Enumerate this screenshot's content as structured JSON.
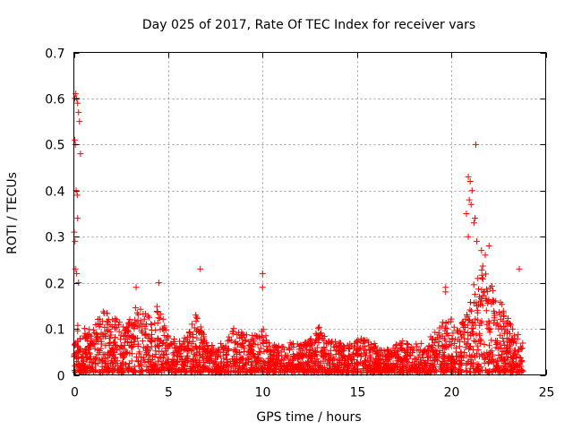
{
  "chart_data": {
    "type": "scatter",
    "title": "Day 025 of 2017, Rate Of TEC Index for receiver vars",
    "xlabel": "GPS time / hours",
    "ylabel": "ROTI / TECUs",
    "xlim": [
      0,
      25
    ],
    "ylim": [
      0,
      0.7
    ],
    "xticks": [
      0,
      5,
      10,
      15,
      20,
      25
    ],
    "yticks": [
      0,
      0.1,
      0.2,
      0.3,
      0.4,
      0.5,
      0.6,
      0.7
    ],
    "xtick_labels": [
      "0",
      "5",
      "10",
      "15",
      "20",
      "25"
    ],
    "ytick_labels": [
      "0",
      "0.1",
      "0.2",
      "0.3",
      "0.4",
      "0.5",
      "0.6",
      "0.7"
    ],
    "grid": true,
    "marker": "+",
    "color": "#ff0000",
    "series": [
      {
        "name": "ROTI",
        "envelope": [
          {
            "x": 0.0,
            "y": 0.12
          },
          {
            "x": 0.5,
            "y": 0.1
          },
          {
            "x": 1.0,
            "y": 0.09
          },
          {
            "x": 1.5,
            "y": 0.14
          },
          {
            "x": 2.0,
            "y": 0.13
          },
          {
            "x": 2.5,
            "y": 0.11
          },
          {
            "x": 3.0,
            "y": 0.12
          },
          {
            "x": 3.5,
            "y": 0.16
          },
          {
            "x": 4.0,
            "y": 0.12
          },
          {
            "x": 4.5,
            "y": 0.15
          },
          {
            "x": 5.0,
            "y": 0.08
          },
          {
            "x": 5.5,
            "y": 0.07
          },
          {
            "x": 6.0,
            "y": 0.08
          },
          {
            "x": 6.5,
            "y": 0.13
          },
          {
            "x": 7.0,
            "y": 0.07
          },
          {
            "x": 7.5,
            "y": 0.06
          },
          {
            "x": 8.0,
            "y": 0.07
          },
          {
            "x": 8.5,
            "y": 0.1
          },
          {
            "x": 9.0,
            "y": 0.09
          },
          {
            "x": 9.5,
            "y": 0.08
          },
          {
            "x": 10.0,
            "y": 0.1
          },
          {
            "x": 10.5,
            "y": 0.06
          },
          {
            "x": 11.0,
            "y": 0.06
          },
          {
            "x": 11.5,
            "y": 0.07
          },
          {
            "x": 12.0,
            "y": 0.06
          },
          {
            "x": 12.5,
            "y": 0.07
          },
          {
            "x": 13.0,
            "y": 0.1
          },
          {
            "x": 13.5,
            "y": 0.07
          },
          {
            "x": 14.0,
            "y": 0.07
          },
          {
            "x": 14.5,
            "y": 0.06
          },
          {
            "x": 15.0,
            "y": 0.07
          },
          {
            "x": 15.5,
            "y": 0.08
          },
          {
            "x": 16.0,
            "y": 0.06
          },
          {
            "x": 16.5,
            "y": 0.05
          },
          {
            "x": 17.0,
            "y": 0.06
          },
          {
            "x": 17.5,
            "y": 0.07
          },
          {
            "x": 18.0,
            "y": 0.06
          },
          {
            "x": 18.5,
            "y": 0.07
          },
          {
            "x": 19.0,
            "y": 0.08
          },
          {
            "x": 19.5,
            "y": 0.11
          },
          {
            "x": 20.0,
            "y": 0.12
          },
          {
            "x": 20.5,
            "y": 0.1
          },
          {
            "x": 21.0,
            "y": 0.16
          },
          {
            "x": 21.5,
            "y": 0.24
          },
          {
            "x": 22.0,
            "y": 0.22
          },
          {
            "x": 22.5,
            "y": 0.17
          },
          {
            "x": 23.0,
            "y": 0.12
          },
          {
            "x": 23.5,
            "y": 0.09
          },
          {
            "x": 23.8,
            "y": 0.07
          }
        ],
        "outliers": [
          {
            "x": 0.05,
            "y": 0.6
          },
          {
            "x": 0.1,
            "y": 0.61
          },
          {
            "x": 0.15,
            "y": 0.6
          },
          {
            "x": 0.2,
            "y": 0.59
          },
          {
            "x": 0.25,
            "y": 0.57
          },
          {
            "x": 0.3,
            "y": 0.55
          },
          {
            "x": 0.35,
            "y": 0.48
          },
          {
            "x": 0.05,
            "y": 0.51
          },
          {
            "x": 0.08,
            "y": 0.5
          },
          {
            "x": 0.12,
            "y": 0.4
          },
          {
            "x": 0.18,
            "y": 0.39
          },
          {
            "x": 0.2,
            "y": 0.34
          },
          {
            "x": 0.02,
            "y": 0.31
          },
          {
            "x": 0.06,
            "y": 0.29
          },
          {
            "x": 0.08,
            "y": 0.23
          },
          {
            "x": 0.15,
            "y": 0.22
          },
          {
            "x": 0.25,
            "y": 0.2
          },
          {
            "x": 21.3,
            "y": 0.5
          },
          {
            "x": 20.9,
            "y": 0.43
          },
          {
            "x": 21.0,
            "y": 0.42
          },
          {
            "x": 21.1,
            "y": 0.4
          },
          {
            "x": 20.95,
            "y": 0.38
          },
          {
            "x": 21.05,
            "y": 0.37
          },
          {
            "x": 21.2,
            "y": 0.33
          },
          {
            "x": 20.8,
            "y": 0.35
          },
          {
            "x": 21.25,
            "y": 0.34
          },
          {
            "x": 20.9,
            "y": 0.3
          },
          {
            "x": 21.35,
            "y": 0.29
          },
          {
            "x": 21.6,
            "y": 0.27
          },
          {
            "x": 21.8,
            "y": 0.26
          },
          {
            "x": 22.0,
            "y": 0.28
          },
          {
            "x": 23.6,
            "y": 0.23
          },
          {
            "x": 6.7,
            "y": 0.23
          },
          {
            "x": 10.0,
            "y": 0.22
          },
          {
            "x": 10.0,
            "y": 0.19
          },
          {
            "x": 3.3,
            "y": 0.19
          },
          {
            "x": 4.5,
            "y": 0.2
          },
          {
            "x": 19.7,
            "y": 0.19
          },
          {
            "x": 19.7,
            "y": 0.18
          }
        ]
      }
    ]
  }
}
